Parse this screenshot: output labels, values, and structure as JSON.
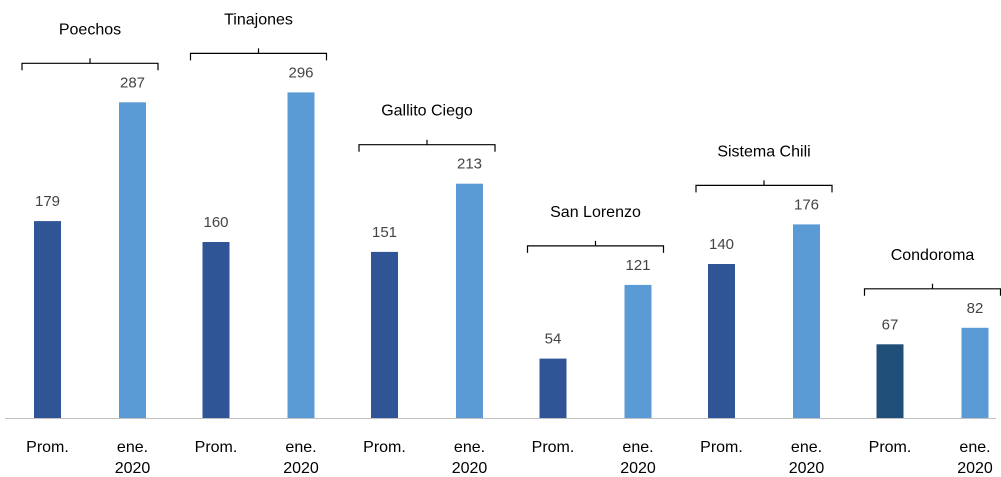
{
  "chart_data": {
    "type": "bar",
    "title": "",
    "xlabel": "",
    "ylabel": "",
    "ylim": [
      0,
      300
    ],
    "grid": false,
    "legend": "none",
    "groups": [
      {
        "name": "Poechos",
        "bars": [
          {
            "label": "Prom.",
            "value": 179
          },
          {
            "label": "ene.\n2020",
            "value": 287
          }
        ]
      },
      {
        "name": "Tinajones",
        "bars": [
          {
            "label": "Prom.",
            "value": 160
          },
          {
            "label": "ene.\n2020",
            "value": 296
          }
        ]
      },
      {
        "name": "Gallito  Ciego",
        "bars": [
          {
            "label": "Prom.",
            "value": 151
          },
          {
            "label": "ene.\n2020",
            "value": 213
          }
        ]
      },
      {
        "name": "San Lorenzo",
        "bars": [
          {
            "label": "Prom.",
            "value": 54
          },
          {
            "label": "ene.\n2020",
            "value": 121
          }
        ]
      },
      {
        "name": "Sistema Chili",
        "bars": [
          {
            "label": "Prom.",
            "value": 140
          },
          {
            "label": "ene.\n2020",
            "value": 176
          }
        ]
      },
      {
        "name": "Condoroma",
        "bars": [
          {
            "label": "Prom.",
            "value": 67
          },
          {
            "label": "ene.\n2020",
            "value": 82
          }
        ]
      }
    ],
    "colors": {
      "prom": "#2F5597",
      "prom_last": "#1F4E79",
      "current": "#5B9BD5",
      "axis": "#BFBFBF",
      "bracket": "#000000"
    }
  }
}
